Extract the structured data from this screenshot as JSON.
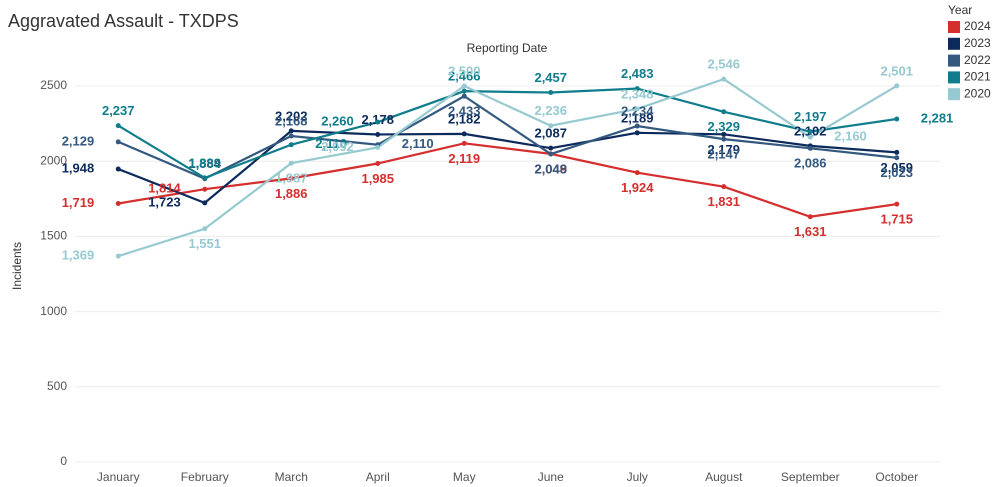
{
  "chart_data": {
    "type": "line",
    "title": "Aggravated Assault - TXDPS",
    "subtitle": "Reporting Date",
    "y_label": "Incidents",
    "legend_title": "Year",
    "legend": "upper right",
    "grid": true,
    "categories": [
      "January",
      "February",
      "March",
      "April",
      "May",
      "June",
      "July",
      "August",
      "September",
      "October"
    ],
    "ylim": [
      0,
      2620
    ],
    "yticks": [
      0,
      500,
      1000,
      1500,
      2000,
      2500
    ],
    "series": [
      {
        "name": "2024",
        "color": "#d42e2e",
        "values": [
          1719,
          1814,
          1886,
          1985,
          2119,
          2049,
          1924,
          1831,
          1631,
          1715
        ],
        "value_labels": [
          "1,719",
          "1,814",
          "1,886",
          "1,985",
          "2,119",
          "2,049",
          "1,924",
          "1,831",
          "1,631",
          "1,715"
        ]
      },
      {
        "name": "2023",
        "color": "#0c2a5c",
        "values": [
          1948,
          1723,
          2202,
          2178,
          2182,
          2087,
          2189,
          2179,
          2102,
          2059
        ],
        "value_labels": [
          "1,948",
          "1,723",
          "2,202",
          "2,178",
          "2,182",
          "2,087",
          "2,189",
          "2,179",
          "2,102",
          "2,059"
        ]
      },
      {
        "name": "2022",
        "color": "#33597f",
        "values": [
          2129,
          1884,
          2168,
          2110,
          2433,
          2048,
          2234,
          2147,
          2086,
          2023
        ],
        "value_labels": [
          "2,129",
          "1,884",
          "2,168",
          "2,110",
          "2,433",
          "2,048",
          "2,234",
          "2,147",
          "2,086",
          "2,023"
        ]
      },
      {
        "name": "2021",
        "color": "#0f7d8b",
        "values": [
          2237,
          1889,
          2110,
          2260,
          2466,
          2457,
          2483,
          2329,
          2197,
          2281
        ],
        "value_labels": [
          "2,237",
          "1,889",
          "2,110",
          "2,260",
          "2,466",
          "2,457",
          "2,483",
          "2,329",
          "2,197",
          "2,281"
        ]
      },
      {
        "name": "2020",
        "color": "#96cad0",
        "values": [
          1369,
          1551,
          1987,
          2092,
          2500,
          2236,
          2348,
          2546,
          2160,
          2501
        ],
        "value_labels": [
          "1,369",
          "1,551",
          "1,987",
          "2,092",
          "2,500",
          "2,236",
          "2,348",
          "2,546",
          "2,160",
          "2,501"
        ]
      }
    ]
  }
}
